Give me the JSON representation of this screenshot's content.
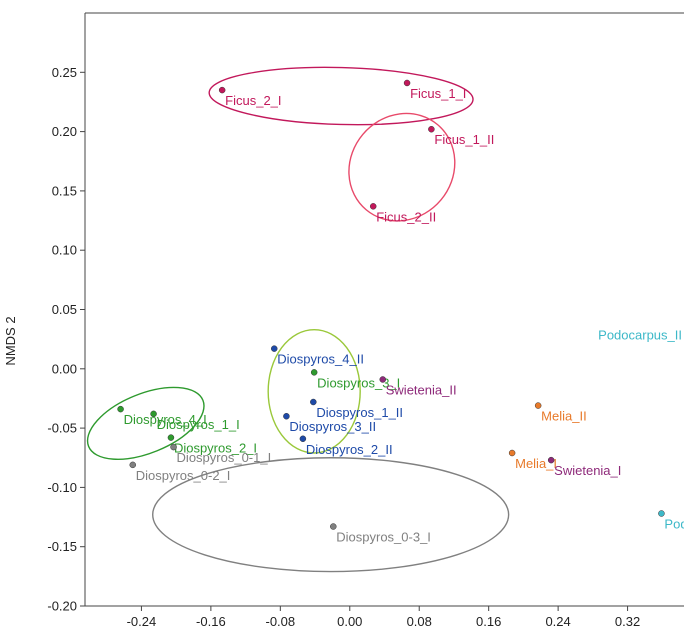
{
  "chart_data": {
    "type": "scatter",
    "title": "",
    "xlabel": "",
    "ylabel": "NMDS 2",
    "xlim": [
      -0.305,
      0.385
    ],
    "ylim": [
      -0.2,
      0.3
    ],
    "x_ticks": [
      -0.24,
      -0.16,
      -0.08,
      0.0,
      0.08,
      0.16,
      0.24,
      0.32
    ],
    "x_tick_labels": [
      "-0.24",
      "-0.16",
      "-0.08",
      "0.00",
      "0.08",
      "0.16",
      "0.24",
      "0.32"
    ],
    "y_ticks": [
      -0.2,
      -0.15,
      -0.1,
      -0.05,
      0.0,
      0.05,
      0.1,
      0.15,
      0.2,
      0.25
    ],
    "y_tick_labels": [
      "-0.20",
      "-0.15",
      "-0.10",
      "-0.05",
      "0.00",
      "0.05",
      "0.10",
      "0.15",
      "0.20",
      "0.25"
    ],
    "grid": false,
    "points": [
      {
        "label": "Ficus_2_I",
        "x": -0.147,
        "y": 0.235,
        "color": "#c2185b"
      },
      {
        "label": "Ficus_1_I",
        "x": 0.066,
        "y": 0.241,
        "color": "#c2185b"
      },
      {
        "label": "Ficus_1_II",
        "x": 0.094,
        "y": 0.202,
        "color": "#c2185b"
      },
      {
        "label": "Ficus_2_II",
        "x": 0.027,
        "y": 0.137,
        "color": "#c2185b"
      },
      {
        "label": "Diospyros_4_II",
        "x": -0.087,
        "y": 0.017,
        "color": "#1e4aa8"
      },
      {
        "label": "Diospyros_3_I",
        "x": -0.041,
        "y": -0.003,
        "color": "#2e9a2e"
      },
      {
        "label": "Swietenia_II",
        "x": 0.038,
        "y": -0.009,
        "color": "#8e2a7a"
      },
      {
        "label": "Diospyros_1_II",
        "x": -0.042,
        "y": -0.028,
        "color": "#1e4aa8"
      },
      {
        "label": "Diospyros_3_II",
        "x": -0.073,
        "y": -0.04,
        "color": "#1e4aa8"
      },
      {
        "label": "Diospyros_2_II",
        "x": -0.054,
        "y": -0.059,
        "color": "#1e4aa8"
      },
      {
        "label": "Diospyros_4_I",
        "x": -0.264,
        "y": -0.034,
        "color": "#2e9a2e"
      },
      {
        "label": "Diospyros_1_I",
        "x": -0.226,
        "y": -0.038,
        "color": "#2e9a2e"
      },
      {
        "label": "Diospyros_2_I",
        "x": -0.206,
        "y": -0.058,
        "color": "#2e9a2e"
      },
      {
        "label": "Diospyros_0-1_I",
        "x": -0.203,
        "y": -0.066,
        "color": "#808080"
      },
      {
        "label": "Diospyros_0-2_I",
        "x": -0.25,
        "y": -0.081,
        "color": "#808080"
      },
      {
        "label": "Diospyros_0-3_I",
        "x": -0.019,
        "y": -0.133,
        "color": "#808080"
      },
      {
        "label": "Melia_II",
        "x": 0.217,
        "y": -0.031,
        "color": "#e87a2a"
      },
      {
        "label": "Melia_I",
        "x": 0.187,
        "y": -0.071,
        "color": "#e87a2a"
      },
      {
        "label": "Swietenia_I",
        "x": 0.232,
        "y": -0.077,
        "color": "#8e2a7a"
      },
      {
        "label": "Podocarpus_II",
        "x": null,
        "y": 0.018,
        "color": "#3cb8c8"
      },
      {
        "label": "Podocarpus_I",
        "x": 0.359,
        "y": -0.122,
        "color": "#3cb8c8"
      }
    ],
    "ellipses": [
      {
        "group": "Ficus_I",
        "cx": -0.01,
        "cy": 0.23,
        "rx": 0.152,
        "ry": 0.024,
        "angle": 1.5,
        "color": "#c2185b"
      },
      {
        "group": "Ficus_II",
        "cx": 0.06,
        "cy": 0.17,
        "rx": 0.064,
        "ry": 0.043,
        "angle": -50,
        "color": "#e84a6a"
      },
      {
        "group": "Diospyros_II",
        "cx": -0.041,
        "cy": -0.019,
        "rx": 0.053,
        "ry": 0.052,
        "angle": 0,
        "color": "#9ac83a"
      },
      {
        "group": "Diospyros_I",
        "cx": -0.235,
        "cy": -0.046,
        "rx": 0.071,
        "ry": 0.025,
        "angle": -22,
        "color": "#2e9a2e"
      },
      {
        "group": "Diospyros_0_I",
        "cx": -0.022,
        "cy": -0.123,
        "rx": 0.205,
        "ry": 0.048,
        "angle": 0,
        "color": "#808080"
      }
    ]
  }
}
